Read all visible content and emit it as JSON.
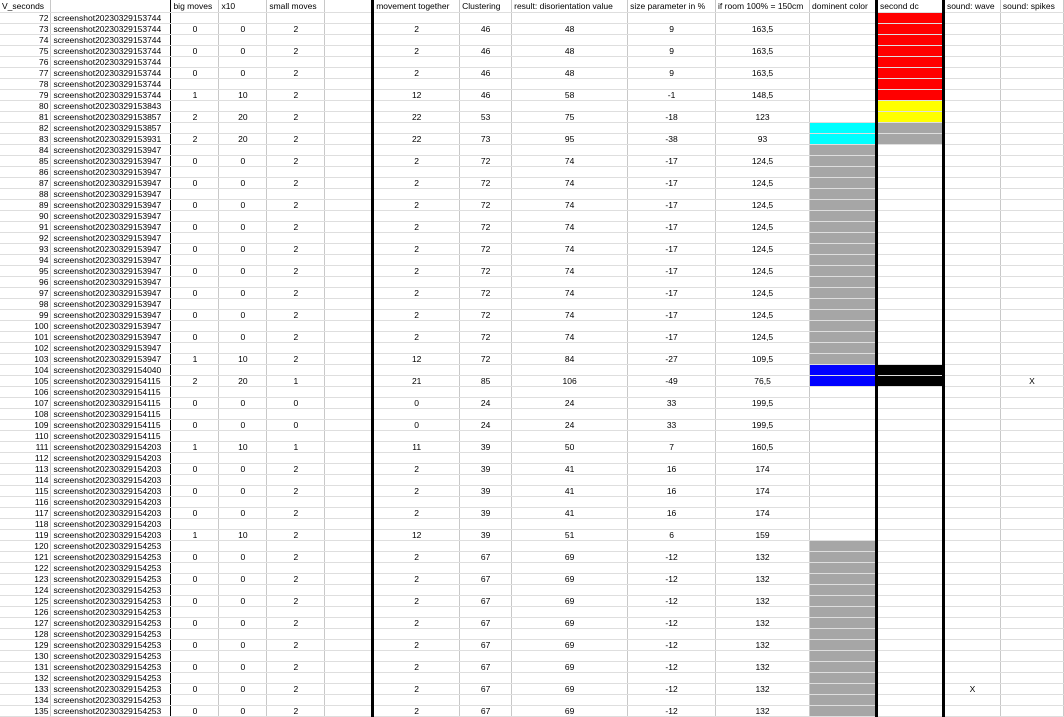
{
  "headers": {
    "c0": "V_seconds",
    "c1": "",
    "c2": "big moves",
    "c3": "x10",
    "c4": "small moves",
    "c5": "",
    "c6": "movement together",
    "c7": "Clustering",
    "c8": "result: disorientation value",
    "c9": "size parameter in %",
    "c10": "if room 100% = 150cm",
    "c11": "dominent color",
    "c12": "second dc",
    "c13": "sound: wave",
    "c14": "sound: spikes"
  },
  "colors": {
    "red": "#ff0000",
    "yellow": "#ffff00",
    "grey": "#a6a6a6",
    "cyan": "#00ffff",
    "blue": "#0000ff",
    "black": "#000000",
    "white": "#ffffff"
  },
  "rows": [
    {
      "i": "72",
      "n": "screenshot20230329153744",
      "bm": "",
      "x": "",
      "sm": "",
      "mt": "",
      "cl": "",
      "dv": "",
      "sp": "",
      "rm": "",
      "dc": "",
      "sd": "red",
      "sw": "",
      "ss": ""
    },
    {
      "i": "73",
      "n": "screenshot20230329153744",
      "bm": "0",
      "x": "0",
      "sm": "2",
      "mt": "2",
      "cl": "46",
      "dv": "48",
      "sp": "9",
      "rm": "163,5",
      "dc": "",
      "sd": "red",
      "sw": "",
      "ss": ""
    },
    {
      "i": "74",
      "n": "screenshot20230329153744",
      "bm": "",
      "x": "",
      "sm": "",
      "mt": "",
      "cl": "",
      "dv": "",
      "sp": "",
      "rm": "",
      "dc": "",
      "sd": "red",
      "sw": "",
      "ss": ""
    },
    {
      "i": "75",
      "n": "screenshot20230329153744",
      "bm": "0",
      "x": "0",
      "sm": "2",
      "mt": "2",
      "cl": "46",
      "dv": "48",
      "sp": "9",
      "rm": "163,5",
      "dc": "",
      "sd": "red",
      "sw": "",
      "ss": ""
    },
    {
      "i": "76",
      "n": "screenshot20230329153744",
      "bm": "",
      "x": "",
      "sm": "",
      "mt": "",
      "cl": "",
      "dv": "",
      "sp": "",
      "rm": "",
      "dc": "",
      "sd": "red",
      "sw": "",
      "ss": ""
    },
    {
      "i": "77",
      "n": "screenshot20230329153744",
      "bm": "0",
      "x": "0",
      "sm": "2",
      "mt": "2",
      "cl": "46",
      "dv": "48",
      "sp": "9",
      "rm": "163,5",
      "dc": "",
      "sd": "red",
      "sw": "",
      "ss": ""
    },
    {
      "i": "78",
      "n": "screenshot20230329153744",
      "bm": "",
      "x": "",
      "sm": "",
      "mt": "",
      "cl": "",
      "dv": "",
      "sp": "",
      "rm": "",
      "dc": "",
      "sd": "red",
      "sw": "",
      "ss": ""
    },
    {
      "i": "79",
      "n": "screenshot20230329153744",
      "bm": "1",
      "x": "10",
      "sm": "2",
      "mt": "12",
      "cl": "46",
      "dv": "58",
      "sp": "-1",
      "rm": "148,5",
      "dc": "",
      "sd": "red",
      "sw": "",
      "ss": ""
    },
    {
      "i": "80",
      "n": "screenshot20230329153843",
      "bm": "",
      "x": "",
      "sm": "",
      "mt": "",
      "cl": "",
      "dv": "",
      "sp": "",
      "rm": "",
      "dc": "",
      "sd": "yellow",
      "sw": "",
      "ss": ""
    },
    {
      "i": "81",
      "n": "screenshot20230329153857",
      "bm": "2",
      "x": "20",
      "sm": "2",
      "mt": "22",
      "cl": "53",
      "dv": "75",
      "sp": "-18",
      "rm": "123",
      "dc": "",
      "sd": "yellow",
      "sw": "",
      "ss": ""
    },
    {
      "i": "82",
      "n": "screenshot20230329153857",
      "bm": "",
      "x": "",
      "sm": "",
      "mt": "",
      "cl": "",
      "dv": "",
      "sp": "",
      "rm": "",
      "dc": "cyan",
      "sd": "grey",
      "sw": "",
      "ss": ""
    },
    {
      "i": "83",
      "n": "screenshot20230329153931",
      "bm": "2",
      "x": "20",
      "sm": "2",
      "mt": "22",
      "cl": "73",
      "dv": "95",
      "sp": "-38",
      "rm": "93",
      "dc": "cyan",
      "sd": "grey",
      "sw": "",
      "ss": ""
    },
    {
      "i": "84",
      "n": "screenshot20230329153947",
      "bm": "",
      "x": "",
      "sm": "",
      "mt": "",
      "cl": "",
      "dv": "",
      "sp": "",
      "rm": "",
      "dc": "grey",
      "sd": "",
      "sw": "",
      "ss": ""
    },
    {
      "i": "85",
      "n": "screenshot20230329153947",
      "bm": "0",
      "x": "0",
      "sm": "2",
      "mt": "2",
      "cl": "72",
      "dv": "74",
      "sp": "-17",
      "rm": "124,5",
      "dc": "grey",
      "sd": "",
      "sw": "",
      "ss": ""
    },
    {
      "i": "86",
      "n": "screenshot20230329153947",
      "bm": "",
      "x": "",
      "sm": "",
      "mt": "",
      "cl": "",
      "dv": "",
      "sp": "",
      "rm": "",
      "dc": "grey",
      "sd": "",
      "sw": "",
      "ss": ""
    },
    {
      "i": "87",
      "n": "screenshot20230329153947",
      "bm": "0",
      "x": "0",
      "sm": "2",
      "mt": "2",
      "cl": "72",
      "dv": "74",
      "sp": "-17",
      "rm": "124,5",
      "dc": "grey",
      "sd": "",
      "sw": "",
      "ss": ""
    },
    {
      "i": "88",
      "n": "screenshot20230329153947",
      "bm": "",
      "x": "",
      "sm": "",
      "mt": "",
      "cl": "",
      "dv": "",
      "sp": "",
      "rm": "",
      "dc": "grey",
      "sd": "",
      "sw": "",
      "ss": ""
    },
    {
      "i": "89",
      "n": "screenshot20230329153947",
      "bm": "0",
      "x": "0",
      "sm": "2",
      "mt": "2",
      "cl": "72",
      "dv": "74",
      "sp": "-17",
      "rm": "124,5",
      "dc": "grey",
      "sd": "",
      "sw": "",
      "ss": ""
    },
    {
      "i": "90",
      "n": "screenshot20230329153947",
      "bm": "",
      "x": "",
      "sm": "",
      "mt": "",
      "cl": "",
      "dv": "",
      "sp": "",
      "rm": "",
      "dc": "grey",
      "sd": "",
      "sw": "",
      "ss": ""
    },
    {
      "i": "91",
      "n": "screenshot20230329153947",
      "bm": "0",
      "x": "0",
      "sm": "2",
      "mt": "2",
      "cl": "72",
      "dv": "74",
      "sp": "-17",
      "rm": "124,5",
      "dc": "grey",
      "sd": "",
      "sw": "",
      "ss": ""
    },
    {
      "i": "92",
      "n": "screenshot20230329153947",
      "bm": "",
      "x": "",
      "sm": "",
      "mt": "",
      "cl": "",
      "dv": "",
      "sp": "",
      "rm": "",
      "dc": "grey",
      "sd": "",
      "sw": "",
      "ss": ""
    },
    {
      "i": "93",
      "n": "screenshot20230329153947",
      "bm": "0",
      "x": "0",
      "sm": "2",
      "mt": "2",
      "cl": "72",
      "dv": "74",
      "sp": "-17",
      "rm": "124,5",
      "dc": "grey",
      "sd": "",
      "sw": "",
      "ss": ""
    },
    {
      "i": "94",
      "n": "screenshot20230329153947",
      "bm": "",
      "x": "",
      "sm": "",
      "mt": "",
      "cl": "",
      "dv": "",
      "sp": "",
      "rm": "",
      "dc": "grey",
      "sd": "",
      "sw": "",
      "ss": ""
    },
    {
      "i": "95",
      "n": "screenshot20230329153947",
      "bm": "0",
      "x": "0",
      "sm": "2",
      "mt": "2",
      "cl": "72",
      "dv": "74",
      "sp": "-17",
      "rm": "124,5",
      "dc": "grey",
      "sd": "",
      "sw": "",
      "ss": ""
    },
    {
      "i": "96",
      "n": "screenshot20230329153947",
      "bm": "",
      "x": "",
      "sm": "",
      "mt": "",
      "cl": "",
      "dv": "",
      "sp": "",
      "rm": "",
      "dc": "grey",
      "sd": "",
      "sw": "",
      "ss": ""
    },
    {
      "i": "97",
      "n": "screenshot20230329153947",
      "bm": "0",
      "x": "0",
      "sm": "2",
      "mt": "2",
      "cl": "72",
      "dv": "74",
      "sp": "-17",
      "rm": "124,5",
      "dc": "grey",
      "sd": "",
      "sw": "",
      "ss": ""
    },
    {
      "i": "98",
      "n": "screenshot20230329153947",
      "bm": "",
      "x": "",
      "sm": "",
      "mt": "",
      "cl": "",
      "dv": "",
      "sp": "",
      "rm": "",
      "dc": "grey",
      "sd": "",
      "sw": "",
      "ss": ""
    },
    {
      "i": "99",
      "n": "screenshot20230329153947",
      "bm": "0",
      "x": "0",
      "sm": "2",
      "mt": "2",
      "cl": "72",
      "dv": "74",
      "sp": "-17",
      "rm": "124,5",
      "dc": "grey",
      "sd": "",
      "sw": "",
      "ss": ""
    },
    {
      "i": "100",
      "n": "screenshot20230329153947",
      "bm": "",
      "x": "",
      "sm": "",
      "mt": "",
      "cl": "",
      "dv": "",
      "sp": "",
      "rm": "",
      "dc": "grey",
      "sd": "",
      "sw": "",
      "ss": ""
    },
    {
      "i": "101",
      "n": "screenshot20230329153947",
      "bm": "0",
      "x": "0",
      "sm": "2",
      "mt": "2",
      "cl": "72",
      "dv": "74",
      "sp": "-17",
      "rm": "124,5",
      "dc": "grey",
      "sd": "",
      "sw": "",
      "ss": ""
    },
    {
      "i": "102",
      "n": "screenshot20230329153947",
      "bm": "",
      "x": "",
      "sm": "",
      "mt": "",
      "cl": "",
      "dv": "",
      "sp": "",
      "rm": "",
      "dc": "grey",
      "sd": "",
      "sw": "",
      "ss": ""
    },
    {
      "i": "103",
      "n": "screenshot20230329153947",
      "bm": "1",
      "x": "10",
      "sm": "2",
      "mt": "12",
      "cl": "72",
      "dv": "84",
      "sp": "-27",
      "rm": "109,5",
      "dc": "grey",
      "sd": "",
      "sw": "",
      "ss": ""
    },
    {
      "i": "104",
      "n": "screenshot20230329154040",
      "bm": "",
      "x": "",
      "sm": "",
      "mt": "",
      "cl": "",
      "dv": "",
      "sp": "",
      "rm": "",
      "dc": "blue",
      "sd": "black",
      "sw": "",
      "ss": ""
    },
    {
      "i": "105",
      "n": "screenshot20230329154115",
      "bm": "2",
      "x": "20",
      "sm": "1",
      "mt": "21",
      "cl": "85",
      "dv": "106",
      "sp": "-49",
      "rm": "76,5",
      "dc": "blue",
      "sd": "black",
      "sw": "",
      "ss": "X"
    },
    {
      "i": "106",
      "n": "screenshot20230329154115",
      "bm": "",
      "x": "",
      "sm": "",
      "mt": "",
      "cl": "",
      "dv": "",
      "sp": "",
      "rm": "",
      "dc": "",
      "sd": "",
      "sw": "",
      "ss": ""
    },
    {
      "i": "107",
      "n": "screenshot20230329154115",
      "bm": "0",
      "x": "0",
      "sm": "0",
      "mt": "0",
      "cl": "24",
      "dv": "24",
      "sp": "33",
      "rm": "199,5",
      "dc": "",
      "sd": "",
      "sw": "",
      "ss": ""
    },
    {
      "i": "108",
      "n": "screenshot20230329154115",
      "bm": "",
      "x": "",
      "sm": "",
      "mt": "",
      "cl": "",
      "dv": "",
      "sp": "",
      "rm": "",
      "dc": "",
      "sd": "",
      "sw": "",
      "ss": ""
    },
    {
      "i": "109",
      "n": "screenshot20230329154115",
      "bm": "0",
      "x": "0",
      "sm": "0",
      "mt": "0",
      "cl": "24",
      "dv": "24",
      "sp": "33",
      "rm": "199,5",
      "dc": "",
      "sd": "",
      "sw": "",
      "ss": ""
    },
    {
      "i": "110",
      "n": "screenshot20230329154115",
      "bm": "",
      "x": "",
      "sm": "",
      "mt": "",
      "cl": "",
      "dv": "",
      "sp": "",
      "rm": "",
      "dc": "",
      "sd": "",
      "sw": "",
      "ss": ""
    },
    {
      "i": "111",
      "n": "screenshot20230329154203",
      "bm": "1",
      "x": "10",
      "sm": "1",
      "mt": "11",
      "cl": "39",
      "dv": "50",
      "sp": "7",
      "rm": "160,5",
      "dc": "",
      "sd": "",
      "sw": "",
      "ss": ""
    },
    {
      "i": "112",
      "n": "screenshot20230329154203",
      "bm": "",
      "x": "",
      "sm": "",
      "mt": "",
      "cl": "",
      "dv": "",
      "sp": "",
      "rm": "",
      "dc": "",
      "sd": "",
      "sw": "",
      "ss": ""
    },
    {
      "i": "113",
      "n": "screenshot20230329154203",
      "bm": "0",
      "x": "0",
      "sm": "2",
      "mt": "2",
      "cl": "39",
      "dv": "41",
      "sp": "16",
      "rm": "174",
      "dc": "",
      "sd": "",
      "sw": "",
      "ss": ""
    },
    {
      "i": "114",
      "n": "screenshot20230329154203",
      "bm": "",
      "x": "",
      "sm": "",
      "mt": "",
      "cl": "",
      "dv": "",
      "sp": "",
      "rm": "",
      "dc": "",
      "sd": "",
      "sw": "",
      "ss": ""
    },
    {
      "i": "115",
      "n": "screenshot20230329154203",
      "bm": "0",
      "x": "0",
      "sm": "2",
      "mt": "2",
      "cl": "39",
      "dv": "41",
      "sp": "16",
      "rm": "174",
      "dc": "",
      "sd": "",
      "sw": "",
      "ss": ""
    },
    {
      "i": "116",
      "n": "screenshot20230329154203",
      "bm": "",
      "x": "",
      "sm": "",
      "mt": "",
      "cl": "",
      "dv": "",
      "sp": "",
      "rm": "",
      "dc": "",
      "sd": "",
      "sw": "",
      "ss": ""
    },
    {
      "i": "117",
      "n": "screenshot20230329154203",
      "bm": "0",
      "x": "0",
      "sm": "2",
      "mt": "2",
      "cl": "39",
      "dv": "41",
      "sp": "16",
      "rm": "174",
      "dc": "",
      "sd": "",
      "sw": "",
      "ss": ""
    },
    {
      "i": "118",
      "n": "screenshot20230329154203",
      "bm": "",
      "x": "",
      "sm": "",
      "mt": "",
      "cl": "",
      "dv": "",
      "sp": "",
      "rm": "",
      "dc": "",
      "sd": "",
      "sw": "",
      "ss": ""
    },
    {
      "i": "119",
      "n": "screenshot20230329154203",
      "bm": "1",
      "x": "10",
      "sm": "2",
      "mt": "12",
      "cl": "39",
      "dv": "51",
      "sp": "6",
      "rm": "159",
      "dc": "",
      "sd": "",
      "sw": "",
      "ss": ""
    },
    {
      "i": "120",
      "n": "screenshot20230329154253",
      "bm": "",
      "x": "",
      "sm": "",
      "mt": "",
      "cl": "",
      "dv": "",
      "sp": "",
      "rm": "",
      "dc": "grey",
      "sd": "",
      "sw": "",
      "ss": ""
    },
    {
      "i": "121",
      "n": "screenshot20230329154253",
      "bm": "0",
      "x": "0",
      "sm": "2",
      "mt": "2",
      "cl": "67",
      "dv": "69",
      "sp": "-12",
      "rm": "132",
      "dc": "grey",
      "sd": "",
      "sw": "",
      "ss": ""
    },
    {
      "i": "122",
      "n": "screenshot20230329154253",
      "bm": "",
      "x": "",
      "sm": "",
      "mt": "",
      "cl": "",
      "dv": "",
      "sp": "",
      "rm": "",
      "dc": "grey",
      "sd": "",
      "sw": "",
      "ss": ""
    },
    {
      "i": "123",
      "n": "screenshot20230329154253",
      "bm": "0",
      "x": "0",
      "sm": "2",
      "mt": "2",
      "cl": "67",
      "dv": "69",
      "sp": "-12",
      "rm": "132",
      "dc": "grey",
      "sd": "",
      "sw": "",
      "ss": ""
    },
    {
      "i": "124",
      "n": "screenshot20230329154253",
      "bm": "",
      "x": "",
      "sm": "",
      "mt": "",
      "cl": "",
      "dv": "",
      "sp": "",
      "rm": "",
      "dc": "grey",
      "sd": "",
      "sw": "",
      "ss": ""
    },
    {
      "i": "125",
      "n": "screenshot20230329154253",
      "bm": "0",
      "x": "0",
      "sm": "2",
      "mt": "2",
      "cl": "67",
      "dv": "69",
      "sp": "-12",
      "rm": "132",
      "dc": "grey",
      "sd": "",
      "sw": "",
      "ss": ""
    },
    {
      "i": "126",
      "n": "screenshot20230329154253",
      "bm": "",
      "x": "",
      "sm": "",
      "mt": "",
      "cl": "",
      "dv": "",
      "sp": "",
      "rm": "",
      "dc": "grey",
      "sd": "",
      "sw": "",
      "ss": ""
    },
    {
      "i": "127",
      "n": "screenshot20230329154253",
      "bm": "0",
      "x": "0",
      "sm": "2",
      "mt": "2",
      "cl": "67",
      "dv": "69",
      "sp": "-12",
      "rm": "132",
      "dc": "grey",
      "sd": "",
      "sw": "",
      "ss": ""
    },
    {
      "i": "128",
      "n": "screenshot20230329154253",
      "bm": "",
      "x": "",
      "sm": "",
      "mt": "",
      "cl": "",
      "dv": "",
      "sp": "",
      "rm": "",
      "dc": "grey",
      "sd": "",
      "sw": "",
      "ss": ""
    },
    {
      "i": "129",
      "n": "screenshot20230329154253",
      "bm": "0",
      "x": "0",
      "sm": "2",
      "mt": "2",
      "cl": "67",
      "dv": "69",
      "sp": "-12",
      "rm": "132",
      "dc": "grey",
      "sd": "",
      "sw": "",
      "ss": ""
    },
    {
      "i": "130",
      "n": "screenshot20230329154253",
      "bm": "",
      "x": "",
      "sm": "",
      "mt": "",
      "cl": "",
      "dv": "",
      "sp": "",
      "rm": "",
      "dc": "grey",
      "sd": "",
      "sw": "",
      "ss": ""
    },
    {
      "i": "131",
      "n": "screenshot20230329154253",
      "bm": "0",
      "x": "0",
      "sm": "2",
      "mt": "2",
      "cl": "67",
      "dv": "69",
      "sp": "-12",
      "rm": "132",
      "dc": "grey",
      "sd": "",
      "sw": "",
      "ss": ""
    },
    {
      "i": "132",
      "n": "screenshot20230329154253",
      "bm": "",
      "x": "",
      "sm": "",
      "mt": "",
      "cl": "",
      "dv": "",
      "sp": "",
      "rm": "",
      "dc": "grey",
      "sd": "",
      "sw": "",
      "ss": ""
    },
    {
      "i": "133",
      "n": "screenshot20230329154253",
      "bm": "0",
      "x": "0",
      "sm": "2",
      "mt": "2",
      "cl": "67",
      "dv": "69",
      "sp": "-12",
      "rm": "132",
      "dc": "grey",
      "sd": "",
      "sw": "X",
      "ss": ""
    },
    {
      "i": "134",
      "n": "screenshot20230329154253",
      "bm": "",
      "x": "",
      "sm": "",
      "mt": "",
      "cl": "",
      "dv": "",
      "sp": "",
      "rm": "",
      "dc": "grey",
      "sd": "",
      "sw": "",
      "ss": ""
    },
    {
      "i": "135",
      "n": "screenshot20230329154253",
      "bm": "0",
      "x": "0",
      "sm": "2",
      "mt": "2",
      "cl": "67",
      "dv": "69",
      "sp": "-12",
      "rm": "132",
      "dc": "grey",
      "sd": "",
      "sw": "",
      "ss": ""
    }
  ]
}
